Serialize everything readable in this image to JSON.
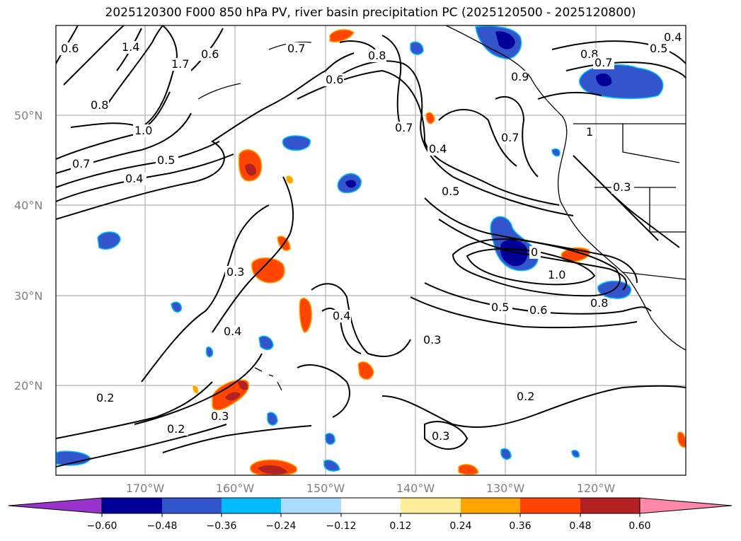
{
  "title": "2025120300 F000 850 hPa PV, river basin precipitation PC (2025120500 - 2025120800)",
  "lat_labels": [
    "50°N",
    "40°N",
    "30°N",
    "20°N"
  ],
  "lon_labels": [
    "170°W",
    "160°W",
    "150°W",
    "140°W",
    "130°W",
    "120°W"
  ],
  "contour_labels": [
    "0.6",
    "1.4",
    "1.7",
    "0.6",
    "0.8",
    "1.0",
    "0.7",
    "0.5",
    "0.4",
    "0.7",
    "0.8",
    "0.6",
    "0.7",
    "0.4",
    "0.5",
    "0.7",
    "0.9",
    "0.8",
    "0.7",
    "0.5",
    "0.4",
    "1",
    "0.3",
    "0.3",
    "0.4",
    "0.4",
    "0.3",
    "0.2",
    "0.2",
    "0.3",
    "0.2",
    "0.3",
    "0",
    "1.0",
    "0.5",
    "0.6",
    "0.8"
  ],
  "colorbar": {
    "ticks": [
      "−0.60",
      "−0.48",
      "−0.36",
      "−0.24",
      "−0.12",
      "0.12",
      "0.24",
      "0.36",
      "0.48",
      "0.60"
    ],
    "colors": [
      "#9933cc",
      "#000099",
      "#3355cc",
      "#00bbff",
      "#aaddff",
      "#ffffff",
      "#ffee99",
      "#ffa500",
      "#ff4500",
      "#b22222",
      "#ff88aa"
    ]
  },
  "legend_colors": {
    "strong_negative": "#000099",
    "negative": "#3355cc",
    "light_negative": "#00bbff",
    "positive": "#ff4500",
    "strong_positive": "#b22222",
    "light_positive": "#ffa500"
  }
}
